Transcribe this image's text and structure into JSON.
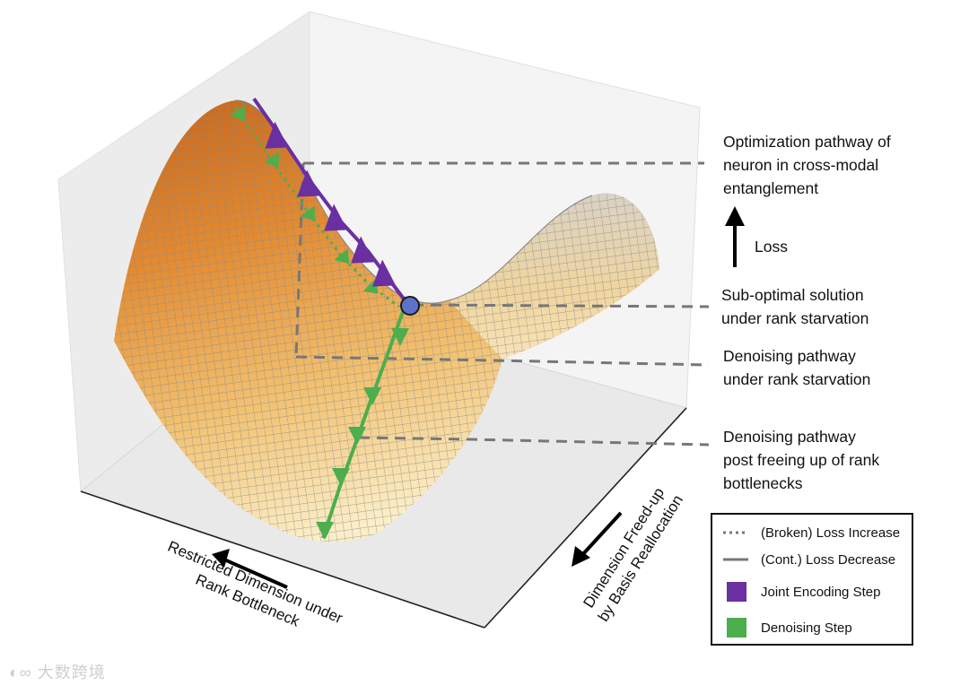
{
  "annotations": {
    "optimization_pathway": "Optimization pathway of\nneuron in cross-modal\nentanglement",
    "loss": "Loss",
    "suboptimal": "Sub-optimal solution\nunder rank starvation",
    "denoising_starvation": "Denoising pathway\nunder rank starvation",
    "denoising_freed": "Denoising pathway\npost freeing up of rank\nbottlenecks"
  },
  "axes": {
    "restricted": "Restricted Dimension under\nRank Bottleneck",
    "freed": "Dimension Freed-up\nby Basis Reallocation"
  },
  "legend": {
    "broken": "(Broken) Loss Increase",
    "cont": "(Cont.) Loss Decrease",
    "joint": "Joint Encoding Step",
    "denoise": "Denoising Step"
  },
  "colors": {
    "joint": "#6a2fa0",
    "denoise": "#4cae4c",
    "point": "#5b74c9",
    "guide": "#777777"
  },
  "watermark": "大数跨境"
}
